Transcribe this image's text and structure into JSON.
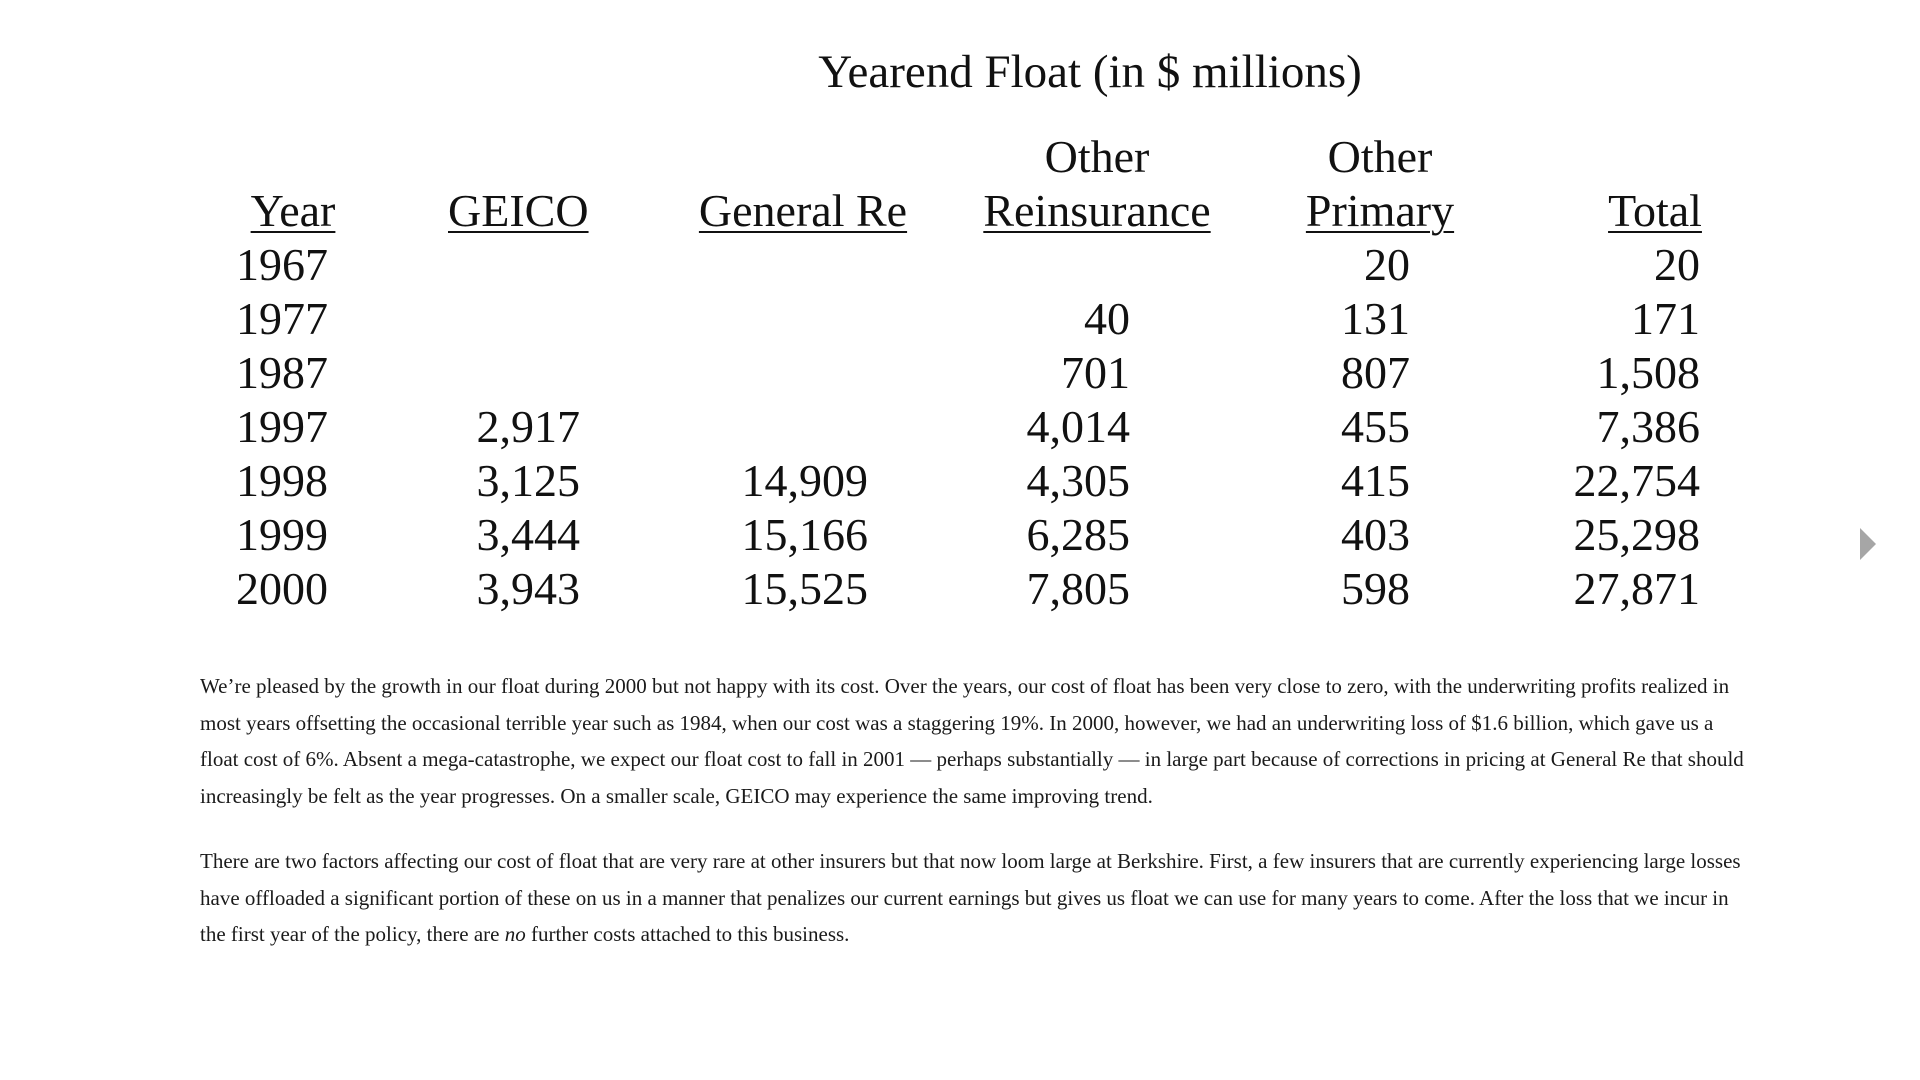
{
  "table": {
    "title": "Yearend Float (in $ millions)",
    "columns": [
      {
        "key": "year",
        "line1": "",
        "line2": "Year"
      },
      {
        "key": "geico",
        "line1": "",
        "line2": "GEICO"
      },
      {
        "key": "genre",
        "line1": "",
        "line2": "General Re"
      },
      {
        "key": "other_re",
        "line1": "Other",
        "line2": "Reinsurance"
      },
      {
        "key": "other_primary",
        "line1": "Other",
        "line2": "Primary"
      },
      {
        "key": "total",
        "line1": "",
        "line2": "Total"
      }
    ],
    "rows": [
      {
        "year": "1967",
        "geico": "",
        "genre": "",
        "other_re": "",
        "other_primary": "20",
        "total": "20"
      },
      {
        "year": "1977",
        "geico": "",
        "genre": "",
        "other_re": "40",
        "other_primary": "131",
        "total": "171"
      },
      {
        "year": "1987",
        "geico": "",
        "genre": "",
        "other_re": "701",
        "other_primary": "807",
        "total": "1,508"
      },
      {
        "year": "1997",
        "geico": "2,917",
        "genre": "",
        "other_re": "4,014",
        "other_primary": "455",
        "total": "7,386"
      },
      {
        "year": "1998",
        "geico": "3,125",
        "genre": "14,909",
        "other_re": "4,305",
        "other_primary": "415",
        "total": "22,754"
      },
      {
        "year": "1999",
        "geico": "3,444",
        "genre": "15,166",
        "other_re": "6,285",
        "other_primary": "403",
        "total": "25,298"
      },
      {
        "year": "2000",
        "geico": "3,943",
        "genre": "15,525",
        "other_re": "7,805",
        "other_primary": "598",
        "total": "27,871"
      }
    ]
  },
  "paragraphs": {
    "p1": "We’re pleased by the growth in our float during 2000 but not happy with its cost. Over the years, our cost of float has been very close to zero, with the underwriting profits realized in most years offsetting the occasional terrible year such as 1984, when our cost was a staggering 19%. In 2000, however, we had an underwriting loss of $1.6 billion, which gave us a float cost of 6%. Absent a mega-catastrophe, we expect our float cost to fall in 2001 — perhaps substantially — in large part because of corrections in pricing at General Re that should increasingly be felt as the year progresses. On a smaller scale, GEICO may experience the same improving trend.",
    "p2_before": "There are two factors affecting our cost of float that are very rare at other insurers but that now loom large at Berkshire. First, a few insurers that are currently experiencing large losses have offloaded a significant portion of these on us in a manner that penalizes our current earnings but gives us float we can use for many years to come. After the loss that we incur in the first year of the policy, there are ",
    "p2_emphasis": "no",
    "p2_after": " further costs attached to this business."
  },
  "navigation": {
    "next_icon": "triangle-right-icon",
    "icon_color": "#a6a6a6"
  }
}
